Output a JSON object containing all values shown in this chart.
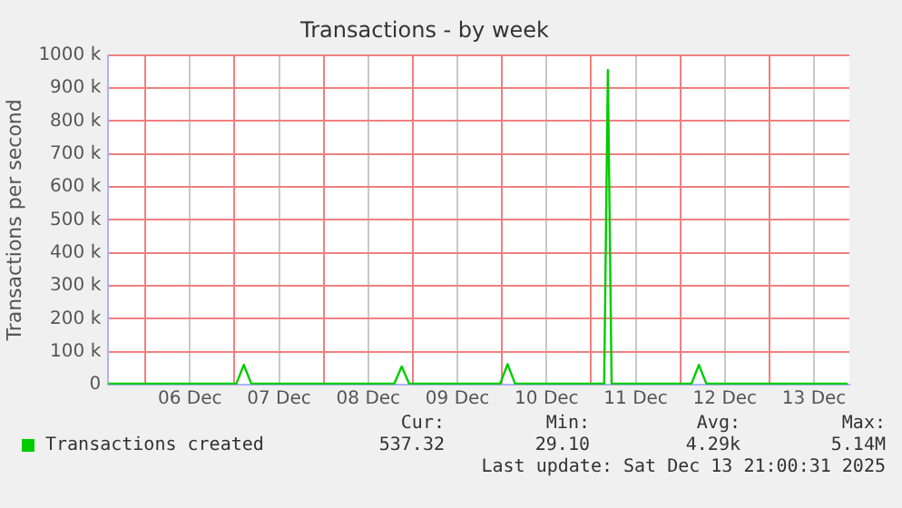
{
  "chart_data": {
    "type": "line",
    "title": "Transactions - by week",
    "ylabel": "Transactions per second",
    "x": [
      "2025-12-05T14:00",
      "2025-12-06T12:00",
      "2025-12-07T00:30",
      "2025-12-07T02:30",
      "2025-12-07T04:30",
      "2025-12-08T00:00",
      "2025-12-08T19:00",
      "2025-12-08T21:00",
      "2025-12-08T23:00",
      "2025-12-09T12:00",
      "2025-12-09T23:30",
      "2025-12-10T01:30",
      "2025-12-10T03:30",
      "2025-12-10T14:00",
      "2025-12-11T03:30",
      "2025-12-11T04:30",
      "2025-12-11T05:30",
      "2025-12-11T12:00",
      "2025-12-12T03:00",
      "2025-12-12T05:00",
      "2025-12-12T07:00",
      "2025-12-13T00:00",
      "2025-12-13T21:00"
    ],
    "series": [
      {
        "name": "Transactions created",
        "color": "#00cc00",
        "values": [
          3000,
          3000,
          3000,
          60000,
          3000,
          3000,
          3000,
          55000,
          3000,
          3000,
          3000,
          62000,
          3000,
          3000,
          3000,
          955000,
          3000,
          3000,
          3000,
          60000,
          3000,
          3000,
          3000
        ]
      }
    ],
    "xlim": [
      "2025-12-05T14:00",
      "2025-12-13T21:30"
    ],
    "xticks": [
      {
        "value": "2025-12-06T00:00",
        "label": null
      },
      {
        "value": "2025-12-06T12:00",
        "label": "06 Dec"
      },
      {
        "value": "2025-12-07T00:00",
        "label": null
      },
      {
        "value": "2025-12-07T12:00",
        "label": "07 Dec"
      },
      {
        "value": "2025-12-08T00:00",
        "label": null
      },
      {
        "value": "2025-12-08T12:00",
        "label": "08 Dec"
      },
      {
        "value": "2025-12-09T00:00",
        "label": null
      },
      {
        "value": "2025-12-09T12:00",
        "label": "09 Dec"
      },
      {
        "value": "2025-12-10T00:00",
        "label": null
      },
      {
        "value": "2025-12-10T12:00",
        "label": "10 Dec"
      },
      {
        "value": "2025-12-11T00:00",
        "label": null
      },
      {
        "value": "2025-12-11T12:00",
        "label": "11 Dec"
      },
      {
        "value": "2025-12-12T00:00",
        "label": null
      },
      {
        "value": "2025-12-12T12:00",
        "label": "12 Dec"
      },
      {
        "value": "2025-12-13T00:00",
        "label": null
      },
      {
        "value": "2025-12-13T12:00",
        "label": "13 Dec"
      }
    ],
    "ylim": [
      0,
      1000000
    ],
    "yticks": [
      0,
      {
        "value": 100000,
        "label": "100 k"
      },
      {
        "value": 200000,
        "label": "200 k"
      },
      {
        "value": 300000,
        "label": "300 k"
      },
      {
        "value": 400000,
        "label": "400 k"
      },
      {
        "value": 500000,
        "label": "500 k"
      },
      {
        "value": 600000,
        "label": "600 k"
      },
      {
        "value": 700000,
        "label": "700 k"
      },
      {
        "value": 800000,
        "label": "800 k"
      },
      {
        "value": 900000,
        "label": "900 k"
      },
      {
        "value": 1000000,
        "label": "1000 k"
      }
    ],
    "grid": true,
    "legend": "bottom",
    "marker": "none",
    "line_style": "solid",
    "annotations": [
      "Cur:",
      "Min:",
      "Avg:",
      "Max:",
      "537.32",
      "29.10",
      "4.29k",
      "5.14M",
      "Last update: Sat Dec 13 21:00:31 2025"
    ]
  }
}
